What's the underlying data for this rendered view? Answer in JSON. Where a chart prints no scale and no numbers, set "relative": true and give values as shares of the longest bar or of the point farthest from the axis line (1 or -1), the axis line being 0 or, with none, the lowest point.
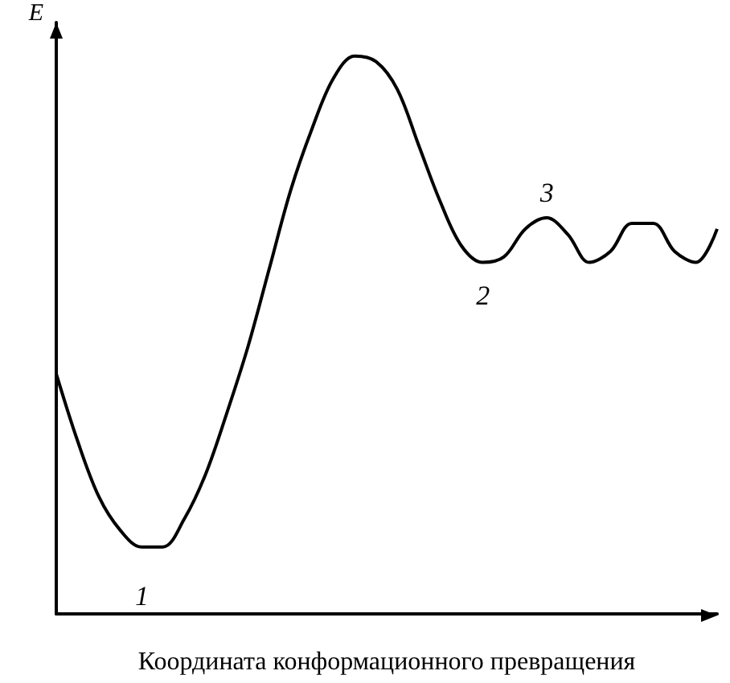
{
  "chart_data": {
    "type": "line",
    "relative": true,
    "ylabel": "E",
    "xlabel": "Координата конформационного превращения",
    "categories": [
      null,
      null,
      null,
      null,
      null,
      null,
      null,
      null,
      null,
      null,
      null,
      null,
      null,
      null,
      null,
      null,
      null,
      null,
      null,
      null,
      null,
      null,
      null,
      null,
      null,
      null,
      null,
      null,
      null,
      null,
      null,
      null
    ],
    "series": [
      {
        "color": "#000000",
        "values": [
          0.43,
          0.31,
          0.21,
          0.15,
          0.12,
          0.12,
          0.17,
          0.25,
          0.36,
          0.48,
          0.62,
          0.76,
          0.87,
          0.96,
          1.0,
          0.99,
          0.94,
          0.84,
          0.74,
          0.66,
          0.63,
          0.64,
          0.69,
          0.71,
          0.68,
          0.63,
          0.65,
          0.7,
          0.7,
          0.65,
          0.63,
          0.69
        ]
      }
    ],
    "annotations": [
      "1",
      "2",
      "3"
    ],
    "marker": "none"
  }
}
